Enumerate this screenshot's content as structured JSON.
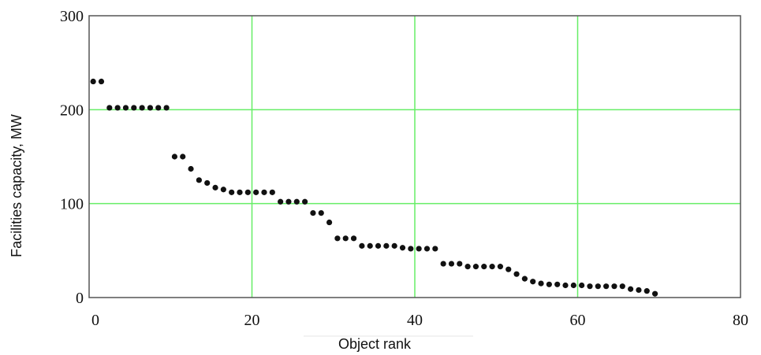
{
  "chart_data": {
    "type": "scatter",
    "title": "",
    "xlabel": "Object rank",
    "ylabel": "Facilities capacity, MW",
    "xlim": [
      0,
      80
    ],
    "ylim": [
      0,
      300
    ],
    "xticks": [
      "0",
      "20",
      "40",
      "60",
      "80"
    ],
    "yticks": [
      "0",
      "100",
      "200",
      "300"
    ],
    "grid": true,
    "colors": {
      "grid": "#66ee66",
      "points": "#111111",
      "frame": "#555555"
    },
    "series": [
      {
        "x": [
          0,
          1,
          2,
          3,
          4,
          5,
          6,
          7,
          8,
          9,
          10,
          11,
          12,
          13,
          14,
          15,
          16,
          17,
          18,
          19,
          20,
          21,
          22,
          23,
          24,
          25,
          26,
          27,
          28,
          29,
          30,
          31,
          32,
          33,
          34,
          35,
          36,
          37,
          38,
          39,
          40,
          41,
          42,
          43,
          44,
          45,
          46,
          47,
          48,
          49,
          50,
          51,
          52,
          53,
          54,
          55,
          56,
          57,
          58,
          59,
          60,
          61,
          62,
          63,
          64,
          65,
          66,
          67,
          68,
          69
        ],
        "y": [
          230,
          230,
          202,
          202,
          202,
          202,
          202,
          202,
          202,
          202,
          150,
          150,
          137,
          125,
          122,
          117,
          115,
          112,
          112,
          112,
          112,
          112,
          112,
          102,
          102,
          102,
          102,
          90,
          90,
          80,
          63,
          63,
          63,
          55,
          55,
          55,
          55,
          55,
          53,
          52,
          52,
          52,
          52,
          36,
          36,
          36,
          33,
          33,
          33,
          33,
          33,
          30,
          25,
          20,
          17,
          15,
          14,
          14,
          13,
          13,
          13,
          12,
          12,
          12,
          12,
          12,
          9,
          8,
          7,
          4
        ]
      }
    ]
  }
}
